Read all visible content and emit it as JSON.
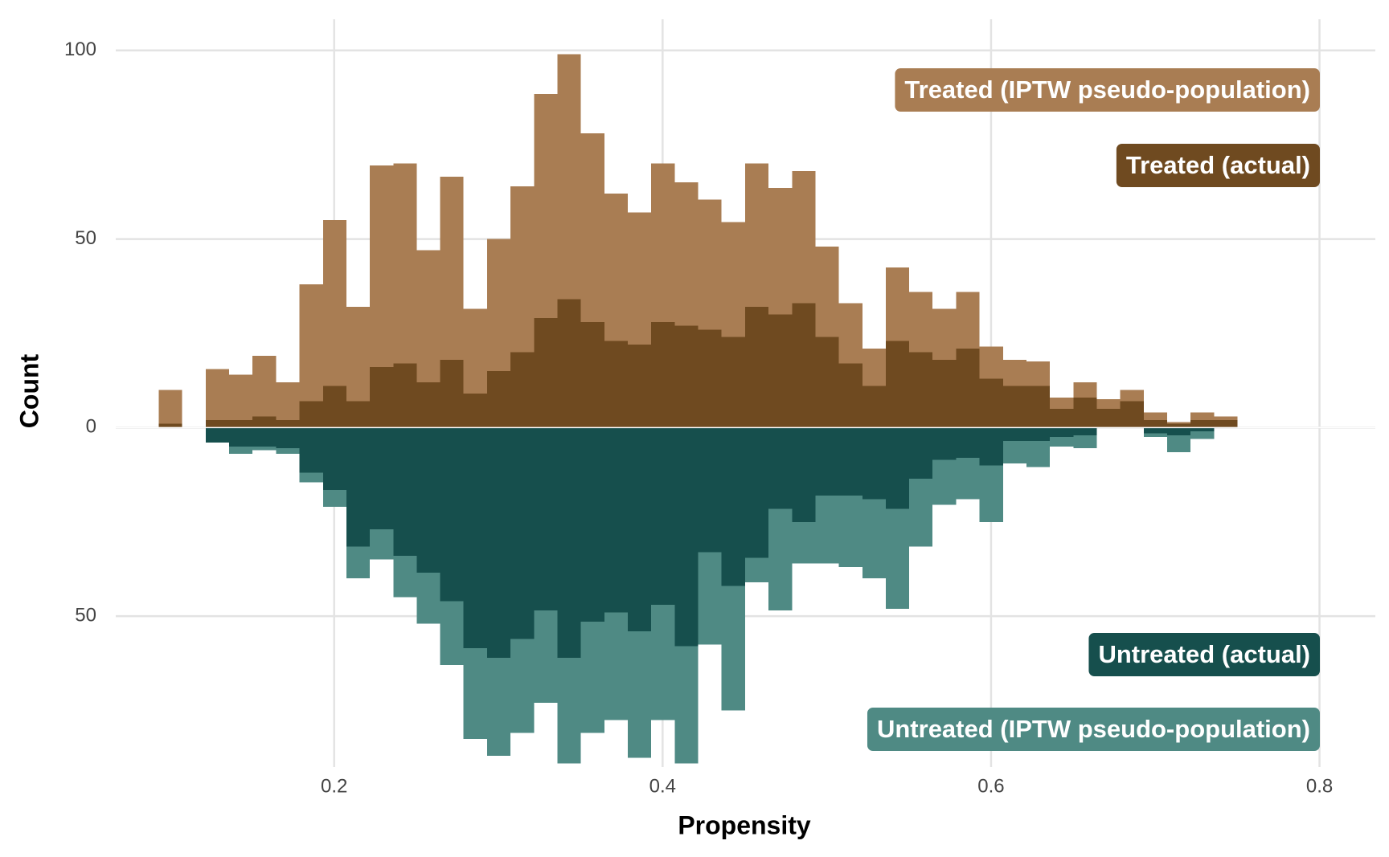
{
  "chart_data": {
    "type": "mirrored_histogram",
    "xlabel": "Propensity",
    "ylabel": "Count",
    "bins": [
      0.0932,
      0.1075,
      0.1218,
      0.136,
      0.1503,
      0.1646,
      0.1789,
      0.1932,
      0.2074,
      0.2217,
      0.236,
      0.2503,
      0.2646,
      0.2788,
      0.2931,
      0.3074,
      0.3217,
      0.336,
      0.3502,
      0.3645,
      0.3788,
      0.3931,
      0.4074,
      0.4216,
      0.4359,
      0.4502,
      0.4645,
      0.4788,
      0.493,
      0.5073,
      0.5216,
      0.5359,
      0.5502,
      0.5644,
      0.5787,
      0.593,
      0.6073,
      0.6216,
      0.6358,
      0.6501,
      0.6644,
      0.6787,
      0.693,
      0.7072,
      0.7215,
      0.7358,
      0.7501
    ],
    "series": [
      {
        "name": "Treated (IPTW pseudo-population)",
        "color": "#a97d53",
        "direction": "up",
        "values": [
          10,
          0,
          15.5,
          14,
          19,
          12,
          38,
          55,
          32,
          69.5,
          70,
          47,
          66.5,
          31.5,
          50,
          64,
          88.5,
          99,
          78,
          62,
          57,
          70,
          65,
          60.5,
          54.5,
          70,
          63.5,
          68,
          48,
          33,
          21,
          42.5,
          36,
          31.5,
          36,
          21.5,
          18,
          17.5,
          8,
          12,
          7.5,
          10,
          4,
          1.5,
          4,
          3
        ]
      },
      {
        "name": "Treated (actual)",
        "color": "#6f4a20",
        "direction": "up",
        "values": [
          1,
          0,
          2,
          2,
          3,
          2,
          7,
          11,
          7,
          16,
          17,
          12,
          18,
          9,
          15,
          20,
          29,
          34,
          28,
          23,
          22,
          28,
          27,
          26,
          24,
          32,
          30,
          33,
          24,
          17,
          11,
          23,
          20,
          18,
          21,
          13,
          11,
          11,
          5,
          8,
          5,
          7,
          2,
          1,
          2,
          2
        ]
      },
      {
        "name": "Untreated (IPTW pseudo-population)",
        "color": "#4f8a84",
        "direction": "down",
        "values": [
          0,
          0,
          4,
          7,
          6,
          7,
          14.5,
          21,
          40,
          35,
          45,
          52,
          63,
          82.5,
          87,
          81,
          73,
          89,
          81,
          77.5,
          87.5,
          77.5,
          89,
          57.5,
          75,
          41,
          48.5,
          36,
          36,
          37,
          40,
          48,
          31.5,
          20.5,
          19,
          25,
          9.5,
          10.5,
          5,
          5.5,
          0,
          0,
          2.5,
          6.5,
          3,
          0
        ]
      },
      {
        "name": "Untreated (actual)",
        "color": "#164f4d",
        "direction": "down",
        "values": [
          0,
          0,
          4,
          5,
          5,
          5.5,
          12,
          16.5,
          31.5,
          27,
          34,
          38.5,
          46,
          58.5,
          61,
          56,
          48.5,
          61,
          51.5,
          49,
          54,
          47,
          58,
          33,
          42,
          34.5,
          21.5,
          25,
          18,
          18,
          19,
          21.5,
          13.5,
          8.5,
          8,
          10,
          3.5,
          3.5,
          2.5,
          2,
          0,
          0,
          1.5,
          2,
          1,
          0
        ]
      }
    ],
    "xlim": [
      0.067,
      0.834
    ],
    "ylim": [
      -90,
      104
    ],
    "xticks": [
      0.2,
      0.4,
      0.6,
      0.8
    ],
    "yticks": [
      {
        "value": -50,
        "label": "50"
      },
      0,
      50,
      100
    ],
    "grid": true
  }
}
